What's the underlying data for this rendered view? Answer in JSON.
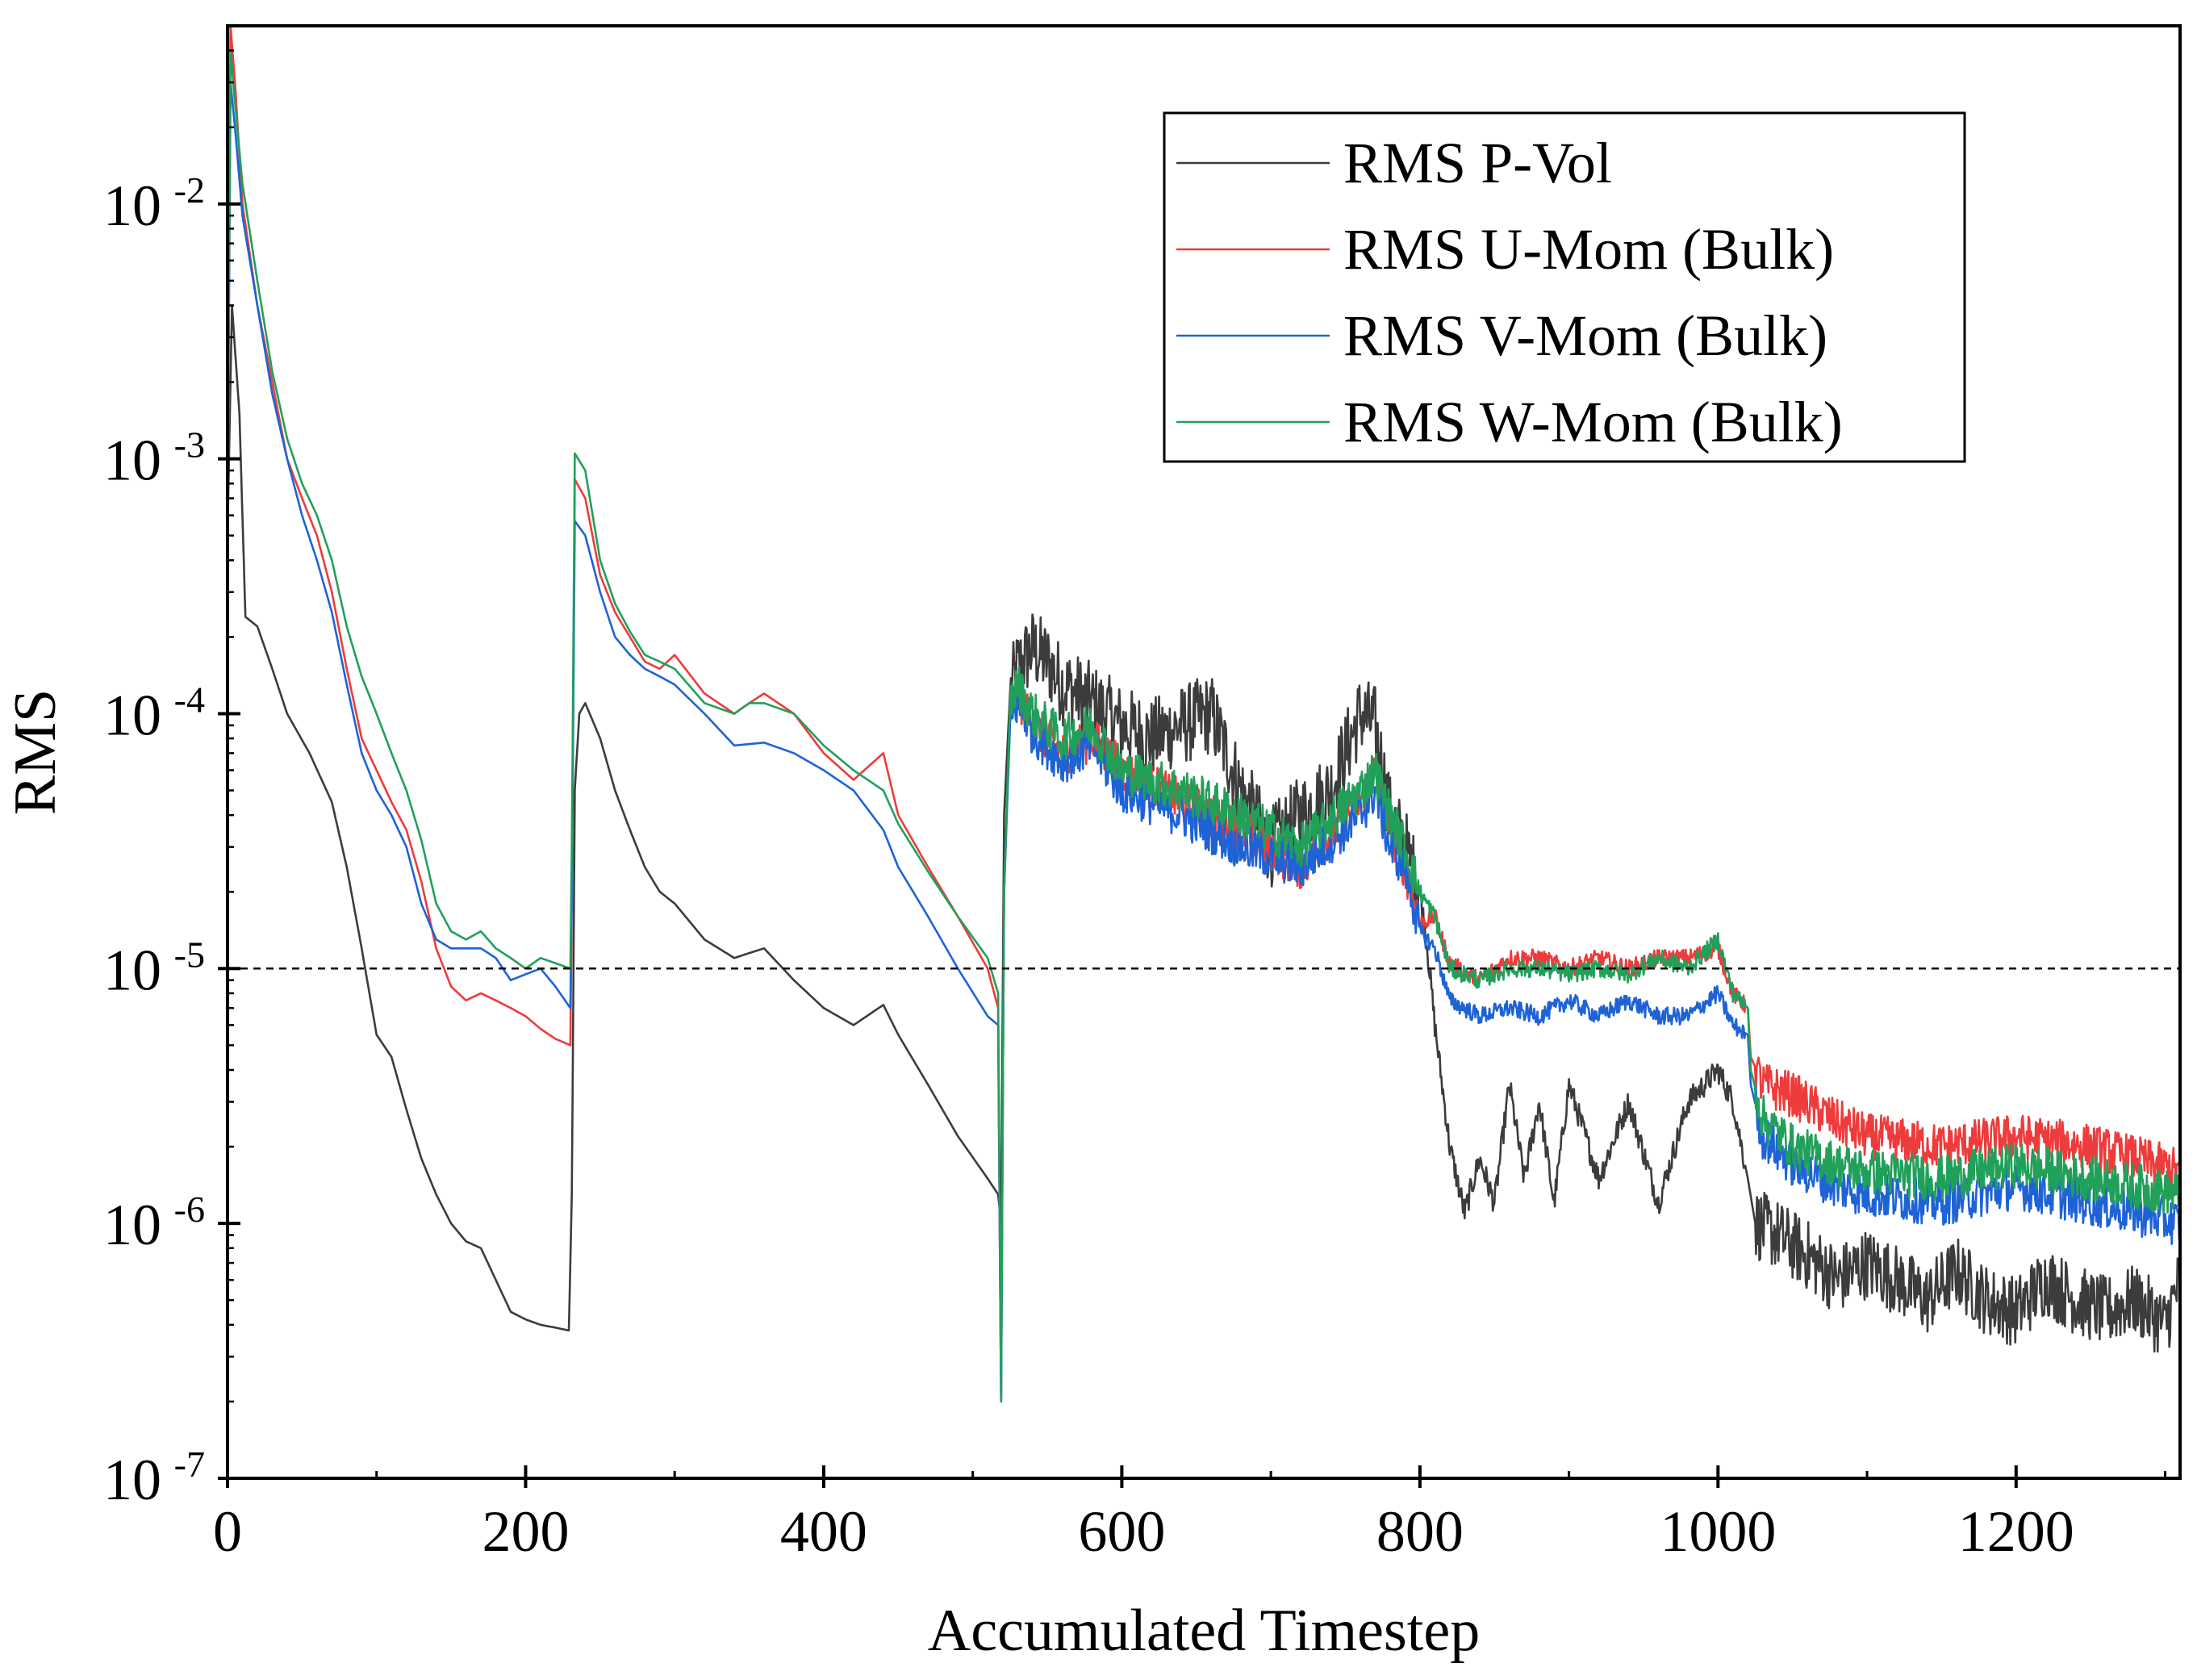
{
  "chart_data": {
    "type": "line",
    "title": "",
    "xlabel": "Accumulated Timestep",
    "ylabel": "RMS",
    "xlim": [
      0,
      1310
    ],
    "ylim": [
      1e-07,
      0.05
    ],
    "yscale": "log",
    "grid": false,
    "legend_position": "top-right",
    "x_ticks": [
      {
        "value": 0,
        "label": "0"
      },
      {
        "value": 200,
        "label": "200"
      },
      {
        "value": 400,
        "label": "400"
      },
      {
        "value": 600,
        "label": "600"
      },
      {
        "value": 800,
        "label": "800"
      },
      {
        "value": 1000,
        "label": "1000"
      },
      {
        "value": 1200,
        "label": "1200"
      }
    ],
    "y_ticks": [
      {
        "value": 1e-07,
        "base": "10",
        "exp": "-7"
      },
      {
        "value": 1e-06,
        "base": "10",
        "exp": "-6"
      },
      {
        "value": 1e-05,
        "base": "10",
        "exp": "-5"
      },
      {
        "value": 0.0001,
        "base": "10",
        "exp": "-4"
      },
      {
        "value": 0.001,
        "base": "10",
        "exp": "-3"
      },
      {
        "value": 0.01,
        "base": "10",
        "exp": "-2"
      }
    ],
    "reference_line": {
      "y": 1e-05,
      "style": "dashed",
      "color": "#000000"
    },
    "series": [
      {
        "name": "RMS P-Vol",
        "color": "#3c3c3c",
        "x": [
          0,
          3,
          8,
          12,
          20,
          30,
          40,
          55,
          70,
          80,
          90,
          100,
          110,
          120,
          130,
          140,
          150,
          160,
          170,
          180,
          190,
          200,
          210,
          220,
          229,
          231,
          233,
          236,
          240,
          250,
          260,
          270,
          280,
          290,
          300,
          320,
          340,
          350,
          360,
          380,
          400,
          420,
          440,
          450,
          470,
          490,
          510,
          517,
          519,
          521,
          525,
          530,
          540,
          550,
          560,
          580,
          600,
          620,
          640,
          660,
          680,
          700,
          720,
          740,
          760,
          770,
          780,
          790,
          800,
          805,
          810,
          820,
          830,
          840,
          850,
          860,
          870,
          880,
          890,
          900,
          920,
          940,
          960,
          980,
          1000,
          1010,
          1020,
          1025,
          1040,
          1060,
          1080,
          1100,
          1120,
          1140,
          1160,
          1180,
          1200,
          1220,
          1240,
          1260,
          1280,
          1300,
          1310
        ],
        "y": [
          0.0005,
          0.004,
          0.0015,
          0.00024,
          0.00022,
          0.00015,
          0.0001,
          7e-05,
          4.5e-05,
          2.5e-05,
          1.2e-05,
          5.5e-06,
          4.5e-06,
          2.8e-06,
          1.8e-06,
          1.3e-06,
          1e-06,
          8.5e-07,
          8e-07,
          6e-07,
          4.5e-07,
          4.2e-07,
          4e-07,
          3.9e-07,
          3.8e-07,
          1.3e-06,
          5e-05,
          0.0001,
          0.00011,
          8e-05,
          5e-05,
          3.5e-05,
          2.5e-05,
          2e-05,
          1.8e-05,
          1.3e-05,
          1.1e-05,
          1.15e-05,
          1.2e-05,
          9e-06,
          7e-06,
          6e-06,
          7.2e-06,
          5.5e-06,
          3.5e-06,
          2.2e-06,
          1.5e-06,
          1.3e-06,
          1e-06,
          4e-05,
          0.00012,
          0.00015,
          0.00018,
          0.00016,
          0.00013,
          0.00011,
          9e-05,
          8e-05,
          9e-05,
          0.0001,
          5e-05,
          3e-05,
          4e-05,
          5e-05,
          0.0001,
          9e-05,
          4e-05,
          3e-05,
          2e-05,
          1.2e-05,
          6e-06,
          2e-06,
          1.1e-06,
          1.8e-06,
          1.2e-06,
          3.5e-06,
          1.5e-06,
          3e-06,
          1.2e-06,
          3.5e-06,
          1.5e-06,
          3e-06,
          1.2e-06,
          3e-06,
          4e-06,
          3e-06,
          1.5e-06,
          1e-06,
          9e-07,
          7.5e-07,
          6e-07,
          7e-07,
          6e-07,
          5e-07,
          6.5e-07,
          5e-07,
          4.5e-07,
          6e-07,
          5e-07,
          4.5e-07,
          5e-07,
          4e-07,
          6e-07
        ]
      },
      {
        "name": "RMS U-Mom (Bulk)",
        "color": "#ee3b3b",
        "x": [
          0,
          2,
          5,
          10,
          20,
          30,
          40,
          50,
          60,
          70,
          80,
          90,
          100,
          110,
          120,
          130,
          140,
          150,
          160,
          170,
          180,
          190,
          200,
          210,
          220,
          230,
          231,
          233,
          240,
          250,
          260,
          270,
          280,
          290,
          300,
          320,
          340,
          350,
          360,
          380,
          400,
          420,
          440,
          450,
          470,
          490,
          510,
          517,
          519,
          521,
          525,
          530,
          540,
          560,
          580,
          600,
          640,
          680,
          720,
          760,
          770,
          780,
          790,
          800,
          810,
          820,
          840,
          860,
          880,
          900,
          920,
          940,
          960,
          980,
          1000,
          1010,
          1020,
          1022,
          1030,
          1050,
          1080,
          1100,
          1150,
          1200,
          1250,
          1280,
          1310
        ],
        "y": [
          0.0005,
          0.05,
          0.03,
          0.01,
          0.004,
          0.002,
          0.001,
          0.0007,
          0.0005,
          0.0003,
          0.00015,
          8e-05,
          6e-05,
          4.5e-05,
          3.5e-05,
          2.2e-05,
          1.2e-05,
          8.5e-06,
          7.5e-06,
          8e-06,
          7.5e-06,
          7e-06,
          6.5e-06,
          5.8e-06,
          5.3e-06,
          5e-06,
          2e-05,
          0.00083,
          0.0007,
          0.00035,
          0.00025,
          0.0002,
          0.00016,
          0.00015,
          0.00017,
          0.00012,
          0.0001,
          0.00011,
          0.00012,
          0.0001,
          7e-05,
          5.5e-05,
          7e-05,
          4e-05,
          2.5e-05,
          1.6e-05,
          1e-05,
          7e-06,
          2e-07,
          2e-05,
          0.0001,
          0.00012,
          9e-05,
          7e-05,
          8e-05,
          6e-05,
          4.5e-05,
          3.5e-05,
          2.5e-05,
          4.5e-05,
          6e-05,
          3.5e-05,
          2.5e-05,
          1.5e-05,
          1.6e-05,
          1.05e-05,
          9e-06,
          1.1e-05,
          1.1e-05,
          1e-05,
          1.1e-05,
          1e-05,
          1.1e-05,
          1.1e-05,
          1.2e-05,
          8e-06,
          7e-06,
          4.5e-06,
          3.5e-06,
          3.2e-06,
          2.5e-06,
          2.2e-06,
          2e-06,
          2.2e-06,
          2e-06,
          1.8e-06,
          1.6e-06
        ]
      },
      {
        "name": "RMS V-Mom (Bulk)",
        "color": "#1e63d6",
        "x": [
          0,
          2,
          5,
          10,
          20,
          30,
          40,
          50,
          60,
          70,
          80,
          90,
          100,
          110,
          120,
          130,
          140,
          150,
          160,
          170,
          180,
          190,
          200,
          210,
          220,
          230,
          231,
          233,
          240,
          250,
          260,
          270,
          280,
          290,
          300,
          320,
          340,
          350,
          360,
          380,
          400,
          420,
          440,
          450,
          470,
          490,
          510,
          517,
          519,
          521,
          525,
          530,
          540,
          560,
          580,
          600,
          640,
          680,
          720,
          760,
          770,
          780,
          790,
          800,
          810,
          820,
          840,
          860,
          880,
          900,
          920,
          940,
          960,
          980,
          1000,
          1010,
          1020,
          1022,
          1030,
          1050,
          1080,
          1100,
          1150,
          1200,
          1250,
          1280,
          1310
        ],
        "y": [
          0.0005,
          0.03,
          0.02,
          0.009,
          0.004,
          0.0018,
          0.001,
          0.0006,
          0.0004,
          0.00025,
          0.00013,
          7e-05,
          5e-05,
          4e-05,
          3e-05,
          1.8e-05,
          1.3e-05,
          1.2e-05,
          1.2e-05,
          1.2e-05,
          1.1e-05,
          9e-06,
          9.5e-06,
          1e-05,
          8.5e-06,
          7e-06,
          2e-05,
          0.00057,
          0.0005,
          0.0003,
          0.0002,
          0.00017,
          0.00015,
          0.00014,
          0.00013,
          0.0001,
          7.5e-05,
          7.6e-05,
          7.7e-05,
          7e-05,
          6e-05,
          5e-05,
          3.5e-05,
          2.5e-05,
          1.6e-05,
          1e-05,
          6.5e-06,
          6e-06,
          2e-07,
          2e-05,
          9e-05,
          0.00011,
          8.5e-05,
          6.5e-05,
          7.5e-05,
          5e-05,
          4e-05,
          3e-05,
          2.5e-05,
          4e-05,
          5e-05,
          3e-05,
          2.5e-05,
          1.4e-05,
          1.2e-05,
          7.5e-06,
          6.5e-06,
          7e-06,
          6.5e-06,
          7.5e-06,
          6.5e-06,
          7.5e-06,
          6.5e-06,
          6.5e-06,
          8e-06,
          6e-06,
          5.5e-06,
          3.5e-06,
          2.2e-06,
          1.7e-06,
          1.4e-06,
          1.3e-06,
          1.2e-06,
          1.4e-06,
          1.2e-06,
          1.1e-06,
          1e-06
        ]
      },
      {
        "name": "RMS W-Mom (Bulk)",
        "color": "#21a05a",
        "x": [
          0,
          2,
          5,
          10,
          20,
          30,
          40,
          50,
          60,
          70,
          80,
          90,
          100,
          110,
          120,
          130,
          140,
          150,
          160,
          170,
          180,
          190,
          200,
          210,
          220,
          230,
          231,
          233,
          240,
          250,
          260,
          270,
          280,
          290,
          300,
          320,
          340,
          350,
          360,
          380,
          400,
          420,
          440,
          450,
          470,
          490,
          510,
          517,
          519,
          521,
          525,
          530,
          540,
          560,
          580,
          600,
          640,
          680,
          720,
          760,
          770,
          780,
          790,
          800,
          810,
          820,
          840,
          860,
          880,
          900,
          920,
          940,
          960,
          980,
          1000,
          1010,
          1020,
          1022,
          1030,
          1050,
          1080,
          1100,
          1150,
          1200,
          1250,
          1280,
          1310
        ],
        "y": [
          0.0005,
          0.04,
          0.025,
          0.012,
          0.005,
          0.0022,
          0.0012,
          0.0008,
          0.0006,
          0.0004,
          0.00022,
          0.00014,
          0.0001,
          7e-05,
          5e-05,
          3.2e-05,
          1.8e-05,
          1.4e-05,
          1.3e-05,
          1.4e-05,
          1.2e-05,
          1.1e-05,
          1e-05,
          1.1e-05,
          1.05e-05,
          1e-05,
          3e-05,
          0.00105,
          0.0009,
          0.0004,
          0.00027,
          0.00021,
          0.00017,
          0.00016,
          0.00015,
          0.00011,
          0.0001,
          0.00011,
          0.00011,
          0.0001,
          7.5e-05,
          6e-05,
          5e-05,
          3.7e-05,
          2.4e-05,
          1.6e-05,
          1.1e-05,
          8e-06,
          2e-07,
          2e-05,
          0.00011,
          0.00013,
          0.0001,
          8e-05,
          9e-05,
          6e-05,
          5e-05,
          4e-05,
          3e-05,
          5e-05,
          6e-05,
          4e-05,
          3e-05,
          2e-05,
          1.6e-05,
          1e-05,
          9e-06,
          1e-05,
          1e-05,
          9.5e-06,
          1e-05,
          9.5e-06,
          1.1e-05,
          1e-05,
          1.3e-05,
          8e-06,
          7e-06,
          4e-06,
          2.6e-06,
          2e-06,
          1.7e-06,
          1.6e-06,
          1.5e-06,
          1.7e-06,
          1.5e-06,
          1.4e-06,
          1.3e-06
        ]
      }
    ]
  }
}
